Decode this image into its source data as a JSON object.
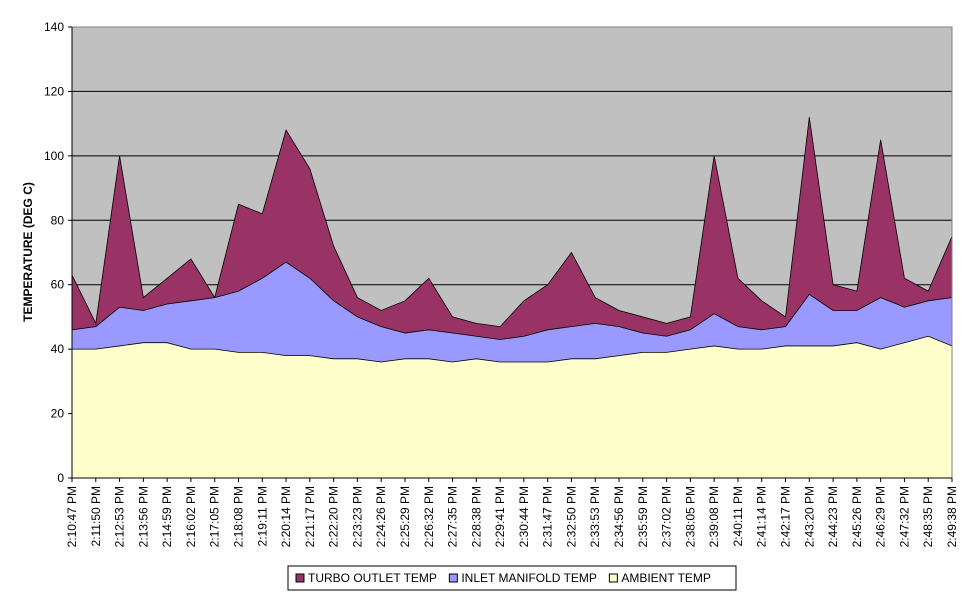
{
  "chart_data": {
    "type": "area",
    "stacked": false,
    "title": "",
    "xlabel": "",
    "ylabel": "TEMPERATURE (DEG C)",
    "ylim": [
      0,
      140
    ],
    "yticks": [
      0,
      20,
      40,
      60,
      80,
      100,
      120,
      140
    ],
    "grid": true,
    "legend_position": "bottom",
    "plot_background": "#c0c0c0",
    "categories": [
      "2:10:47 PM",
      "2:11:50 PM",
      "2:12:53 PM",
      "2:13:56 PM",
      "2:14:59 PM",
      "2:16:02 PM",
      "2:17:05 PM",
      "2:18:08 PM",
      "2:19:11 PM",
      "2:20:14 PM",
      "2:21:17 PM",
      "2:22:20 PM",
      "2:23:23 PM",
      "2:24:26 PM",
      "2:25:29 PM",
      "2:26:32 PM",
      "2:27:35 PM",
      "2:28:38 PM",
      "2:29:41 PM",
      "2:30:44 PM",
      "2:31:47 PM",
      "2:32:50 PM",
      "2:33:53 PM",
      "2:34:56 PM",
      "2:35:59 PM",
      "2:37:02 PM",
      "2:38:05 PM",
      "2:39:08 PM",
      "2:40:11 PM",
      "2:41:14 PM",
      "2:42:17 PM",
      "2:43:20 PM",
      "2:44:23 PM",
      "2:45:26 PM",
      "2:46:29 PM",
      "2:47:32 PM",
      "2:48:35 PM",
      "2:49:38 PM"
    ],
    "series": [
      {
        "name": "TURBO OUTLET TEMP",
        "color": "#993366",
        "values": [
          63,
          48,
          100,
          56,
          62,
          68,
          56,
          85,
          82,
          108,
          96,
          72,
          56,
          52,
          55,
          62,
          50,
          48,
          47,
          55,
          60,
          70,
          56,
          52,
          50,
          48,
          50,
          100,
          62,
          55,
          50,
          112,
          60,
          58,
          105,
          62,
          58,
          75
        ]
      },
      {
        "name": "INLET MANIFOLD TEMP",
        "color": "#9999ff",
        "values": [
          46,
          47,
          53,
          52,
          54,
          55,
          56,
          58,
          62,
          67,
          62,
          55,
          50,
          47,
          45,
          46,
          45,
          44,
          43,
          44,
          46,
          47,
          48,
          47,
          45,
          44,
          46,
          51,
          47,
          46,
          47,
          57,
          52,
          52,
          56,
          53,
          55,
          56
        ]
      },
      {
        "name": "AMBIENT TEMP",
        "color": "#ffffcc",
        "values": [
          40,
          40,
          41,
          42,
          42,
          40,
          40,
          39,
          39,
          38,
          38,
          37,
          37,
          36,
          37,
          37,
          36,
          37,
          36,
          36,
          36,
          37,
          37,
          38,
          39,
          39,
          40,
          41,
          40,
          40,
          41,
          41,
          41,
          42,
          40,
          42,
          44,
          41
        ]
      }
    ]
  }
}
